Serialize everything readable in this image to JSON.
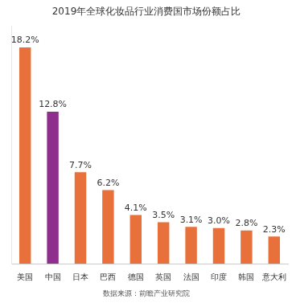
{
  "chart_data": {
    "type": "bar",
    "title": "2019年全球化妆品行业消费国市场份额占比",
    "annotations": [
      "数据来源：前瞻产业研究院"
    ],
    "categories": [
      "美国",
      "中国",
      "日本",
      "巴西",
      "德国",
      "英国",
      "法国",
      "印度",
      "韩国",
      "意大利"
    ],
    "values": [
      18.2,
      12.8,
      7.7,
      6.2,
      4.1,
      3.5,
      3.1,
      3.0,
      2.8,
      2.3
    ],
    "value_labels": [
      "18.2%",
      "12.8%",
      "7.7%",
      "6.2%",
      "4.1%",
      "3.5%",
      "3.1%",
      "3.0%",
      "2.8%",
      "2.3%"
    ],
    "colors": [
      "#e8703a",
      "#8e2f8e",
      "#e8703a",
      "#e8703a",
      "#e8703a",
      "#e8703a",
      "#e8703a",
      "#e8703a",
      "#e8703a",
      "#e8703a"
    ],
    "ylim": [
      0,
      20
    ],
    "grid": false,
    "data_labels": true,
    "tick_labels": "x"
  }
}
